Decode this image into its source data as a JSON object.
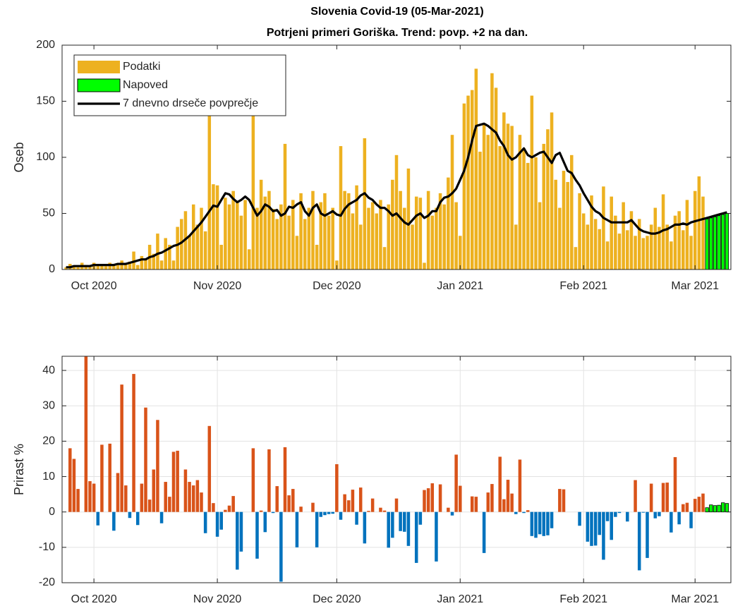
{
  "chart_data": [
    {
      "type": "bar",
      "title": "Slovenia Covid-19 (05-Mar-2021)",
      "subtitle": "Potrjeni primeri Goriška. Trend: povp. +2 na dan.",
      "ylabel": "Oseb",
      "xlim": [
        0,
        168
      ],
      "xticks": [
        {
          "value": 8,
          "label": "Oct 2020"
        },
        {
          "value": 39,
          "label": "Nov 2020"
        },
        {
          "value": 69,
          "label": "Dec 2020"
        },
        {
          "value": 100,
          "label": "Jan 2021"
        },
        {
          "value": 131,
          "label": "Feb 2021"
        },
        {
          "value": 159,
          "label": "Mar 2021"
        }
      ],
      "ylim": [
        0,
        200
      ],
      "yticks": [
        0,
        50,
        100,
        150,
        200
      ],
      "grid": false,
      "legend": "upper left",
      "series": [
        {
          "name": "Podatki",
          "type": "bar",
          "color": "#EDB120",
          "x": [
            1,
            2,
            3,
            4,
            5,
            6,
            7,
            8,
            9,
            10,
            11,
            12,
            13,
            14,
            15,
            16,
            17,
            18,
            19,
            20,
            21,
            22,
            23,
            24,
            25,
            26,
            27,
            28,
            29,
            30,
            31,
            32,
            33,
            34,
            35,
            36,
            37,
            38,
            39,
            40,
            41,
            42,
            43,
            44,
            45,
            46,
            47,
            48,
            49,
            50,
            51,
            52,
            53,
            54,
            55,
            56,
            57,
            58,
            59,
            60,
            61,
            62,
            63,
            64,
            65,
            66,
            67,
            68,
            69,
            70,
            71,
            72,
            73,
            74,
            75,
            76,
            77,
            78,
            79,
            80,
            81,
            82,
            83,
            84,
            85,
            86,
            87,
            88,
            89,
            90,
            91,
            92,
            93,
            94,
            95,
            96,
            97,
            98,
            99,
            100,
            101,
            102,
            103,
            104,
            105,
            106,
            107,
            108,
            109,
            110,
            111,
            112,
            113,
            114,
            115,
            116,
            117,
            118,
            119,
            120,
            121,
            122,
            123,
            124,
            125,
            126,
            127,
            128,
            129,
            130,
            131,
            132,
            133,
            134,
            135,
            136,
            137,
            138,
            139,
            140,
            141,
            142,
            143,
            144,
            145,
            146,
            147,
            148,
            149,
            150,
            151,
            152,
            153,
            154,
            155,
            156,
            157,
            158,
            159,
            160,
            161
          ],
          "values": [
            2,
            5,
            3,
            2,
            6,
            4,
            3,
            6,
            4,
            5,
            3,
            6,
            5,
            4,
            8,
            5,
            7,
            16,
            4,
            12,
            10,
            22,
            14,
            32,
            8,
            28,
            22,
            8,
            38,
            45,
            52,
            30,
            58,
            40,
            55,
            34,
            140,
            76,
            75,
            22,
            64,
            58,
            70,
            60,
            48,
            62,
            18,
            140,
            55,
            80,
            65,
            70,
            54,
            45,
            58,
            112,
            48,
            62,
            30,
            68,
            45,
            55,
            70,
            22,
            60,
            68,
            48,
            55,
            8,
            110,
            70,
            68,
            50,
            75,
            40,
            117,
            55,
            60,
            50,
            62,
            20,
            58,
            80,
            102,
            70,
            55,
            90,
            40,
            65,
            64,
            6,
            70,
            48,
            55,
            68,
            58,
            82,
            120,
            60,
            30,
            148,
            155,
            160,
            179,
            105,
            130,
            120,
            175,
            162,
            110,
            140,
            130,
            128,
            40,
            120,
            108,
            95,
            155,
            100,
            60,
            112,
            125,
            140,
            80,
            55,
            88,
            78,
            102,
            20,
            68,
            50,
            40,
            66,
            45,
            36,
            74,
            25,
            65,
            48,
            32,
            60,
            35,
            52,
            30,
            45,
            28,
            30,
            40,
            55,
            38,
            67,
            40,
            25,
            48,
            52,
            35,
            62,
            30,
            70,
            83,
            65
          ]
        },
        {
          "name": "Napoved",
          "type": "bar",
          "color": "#00FF00",
          "edgecolor": "#000000",
          "x": [
            162,
            163,
            164,
            165,
            166,
            167
          ],
          "values": [
            45,
            46,
            47,
            48,
            49,
            50
          ]
        },
        {
          "name": "7 dnevno drseče povprečje",
          "type": "line",
          "color": "#000000",
          "x": [
            1,
            2,
            3,
            4,
            5,
            6,
            7,
            8,
            9,
            10,
            11,
            12,
            13,
            14,
            15,
            16,
            17,
            18,
            19,
            20,
            21,
            22,
            23,
            24,
            25,
            26,
            27,
            28,
            29,
            30,
            31,
            32,
            33,
            34,
            35,
            36,
            37,
            38,
            39,
            40,
            41,
            42,
            43,
            44,
            45,
            46,
            47,
            48,
            49,
            50,
            51,
            52,
            53,
            54,
            55,
            56,
            57,
            58,
            59,
            60,
            61,
            62,
            63,
            64,
            65,
            66,
            67,
            68,
            69,
            70,
            71,
            72,
            73,
            74,
            75,
            76,
            77,
            78,
            79,
            80,
            81,
            82,
            83,
            84,
            85,
            86,
            87,
            88,
            89,
            90,
            91,
            92,
            93,
            94,
            95,
            96,
            97,
            98,
            99,
            100,
            101,
            102,
            103,
            104,
            105,
            106,
            107,
            108,
            109,
            110,
            111,
            112,
            113,
            114,
            115,
            116,
            117,
            118,
            119,
            120,
            121,
            122,
            123,
            124,
            125,
            126,
            127,
            128,
            129,
            130,
            131,
            132,
            133,
            134,
            135,
            136,
            137,
            138,
            139,
            140,
            141,
            142,
            143,
            144,
            145,
            146,
            147,
            148,
            149,
            150,
            151,
            152,
            153,
            154,
            155,
            156,
            157,
            158,
            159,
            160,
            161,
            162,
            163,
            164,
            165,
            166,
            167
          ],
          "values": [
            2,
            2,
            3,
            3,
            3,
            3,
            3,
            4,
            4,
            4,
            4,
            4,
            4,
            5,
            5,
            5,
            6,
            7,
            8,
            9,
            9,
            11,
            12,
            14,
            15,
            17,
            19,
            21,
            22,
            24,
            27,
            30,
            34,
            38,
            42,
            47,
            52,
            57,
            56,
            62,
            68,
            67,
            63,
            60,
            62,
            65,
            62,
            55,
            48,
            52,
            58,
            56,
            52,
            53,
            48,
            50,
            56,
            55,
            58,
            60,
            52,
            48,
            55,
            58,
            50,
            48,
            50,
            52,
            49,
            48,
            54,
            58,
            60,
            62,
            66,
            68,
            64,
            62,
            58,
            55,
            55,
            52,
            48,
            50,
            46,
            42,
            40,
            44,
            48,
            50,
            46,
            48,
            52,
            52,
            60,
            64,
            65,
            68,
            72,
            80,
            88,
            100,
            115,
            128,
            129,
            130,
            128,
            125,
            122,
            115,
            110,
            102,
            98,
            100,
            104,
            108,
            102,
            100,
            102,
            104,
            105,
            100,
            95,
            102,
            104,
            96,
            88,
            86,
            80,
            75,
            68,
            62,
            56,
            52,
            50,
            46,
            44,
            42,
            42,
            42,
            42,
            42,
            44,
            40,
            36,
            34,
            33,
            32,
            32,
            33,
            35,
            36,
            38,
            40,
            40,
            41,
            40,
            42,
            43,
            44,
            45,
            46,
            47,
            48,
            49,
            50,
            51
          ]
        }
      ]
    },
    {
      "type": "bar",
      "ylabel": "Prirast %",
      "xlim": [
        0,
        168
      ],
      "xticks": [
        {
          "value": 8,
          "label": "Oct 2020"
        },
        {
          "value": 39,
          "label": "Nov 2020"
        },
        {
          "value": 69,
          "label": "Dec 2020"
        },
        {
          "value": 100,
          "label": "Jan 2021"
        },
        {
          "value": 131,
          "label": "Feb 2021"
        },
        {
          "value": 159,
          "label": "Mar 2021"
        }
      ],
      "ylim": [
        -20,
        44
      ],
      "yticks": [
        -20,
        -10,
        0,
        10,
        20,
        30,
        40
      ],
      "grid": true,
      "series": [
        {
          "type": "bar",
          "color_positive": "#D95319",
          "color_negative": "#0072BD",
          "x": [
            1,
            2,
            3,
            4,
            5,
            6,
            7,
            8,
            9,
            10,
            11,
            12,
            13,
            14,
            15,
            16,
            17,
            18,
            19,
            20,
            21,
            22,
            23,
            24,
            25,
            26,
            27,
            28,
            29,
            30,
            31,
            32,
            33,
            34,
            35,
            36,
            37,
            38,
            39,
            40,
            41,
            42,
            43,
            44,
            45,
            46,
            47,
            48,
            49,
            50,
            51,
            52,
            53,
            54,
            55,
            56,
            57,
            58,
            59,
            60,
            61,
            62,
            63,
            64,
            65,
            66,
            67,
            68,
            69,
            70,
            71,
            72,
            73,
            74,
            75,
            76,
            77,
            78,
            79,
            80,
            81,
            82,
            83,
            84,
            85,
            86,
            87,
            88,
            89,
            90,
            91,
            92,
            93,
            94,
            95,
            96,
            97,
            98,
            99,
            100,
            101,
            102,
            103,
            104,
            105,
            106,
            107,
            108,
            109,
            110,
            111,
            112,
            113,
            114,
            115,
            116,
            117,
            118,
            119,
            120,
            121,
            122,
            123,
            124,
            125,
            126,
            127,
            128,
            129,
            130,
            131,
            132,
            133,
            134,
            135,
            136,
            137,
            138,
            139,
            140,
            141,
            142,
            143,
            144,
            145,
            146,
            147,
            148,
            149,
            150,
            151,
            152,
            153,
            154,
            155,
            156,
            157,
            158,
            159,
            160,
            161
          ],
          "values": [
            0,
            18,
            15,
            6.5,
            0,
            44,
            8.7,
            8,
            -3.8,
            19,
            0,
            19.3,
            -5.3,
            11,
            36,
            7.5,
            -1.7,
            39,
            -3.7,
            8,
            29.5,
            3.5,
            12,
            26,
            -3.2,
            8.5,
            4.3,
            17,
            17.3,
            0,
            12,
            8.5,
            7.5,
            9,
            5.5,
            -6,
            24.3,
            2.5,
            -7,
            -5,
            0.6,
            1.8,
            4.5,
            -16.3,
            -11.2,
            0,
            0,
            18,
            -13.2,
            0.4,
            -5.7,
            17.7,
            -0.3,
            7.3,
            -19.7,
            18.3,
            4.7,
            6.5,
            -10,
            1.5,
            0,
            0,
            2.6,
            -10,
            -1.4,
            -0.9,
            -0.6,
            -0.5,
            13.5,
            -2.2,
            5,
            3.3,
            6.3,
            -3.6,
            6.9,
            -8.9,
            0.3,
            3.8,
            0,
            1.2,
            0.4,
            -10.1,
            -7.3,
            3.8,
            -5.4,
            -5.6,
            -9.6,
            0,
            -14.4,
            -3.6,
            6.2,
            6.7,
            8.1,
            -14,
            7.8,
            0,
            1.2,
            -1,
            16.2,
            7.4,
            0,
            0,
            4.4,
            4.3,
            0,
            -11.6,
            5.5,
            7.9,
            0,
            15.6,
            3.6,
            9.1,
            5.2,
            -0.6,
            14.8,
            -0.3,
            0.5,
            -6.8,
            -7.3,
            -6.3,
            -6.8,
            -6.6,
            -4.6,
            0,
            6.5,
            6.4,
            0,
            0,
            0,
            -3.9,
            0,
            -8.4,
            -9.6,
            -9.5,
            -6.5,
            -13.5,
            -2.6,
            -7.9,
            -1.4,
            -0.3,
            0,
            -2.7,
            0,
            9,
            -16.5,
            -0.2,
            -13,
            8,
            -1.8,
            -1.2,
            8.2,
            8.3,
            -5.8,
            15.5,
            -3.5,
            2.2,
            2.6,
            -4.6,
            3.7,
            4.3,
            5.2
          ]
        },
        {
          "type": "bar",
          "color": "#00FF00",
          "edgecolor": "#000000",
          "x": [
            162,
            163,
            164,
            165,
            166,
            167
          ],
          "values": [
            1.2,
            2.0,
            1.8,
            1.9,
            2.6,
            2.4
          ]
        }
      ]
    }
  ]
}
